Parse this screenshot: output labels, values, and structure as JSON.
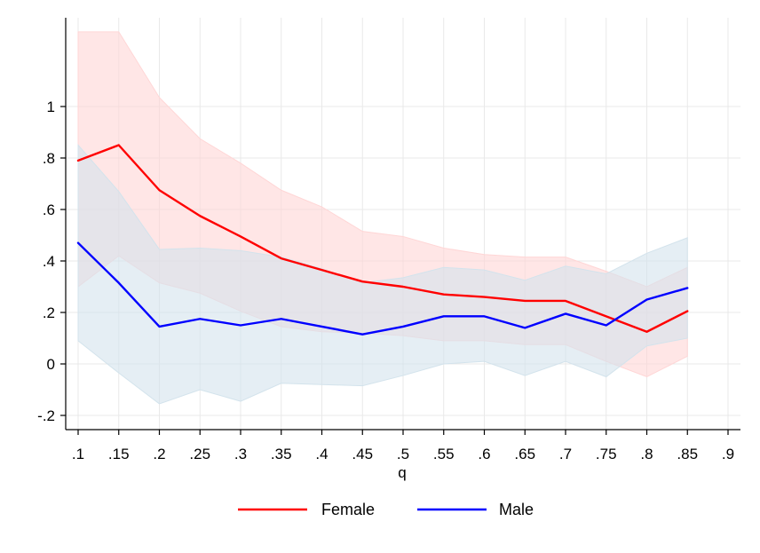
{
  "chart_data": {
    "type": "line",
    "title": "",
    "xlabel": "q",
    "ylabel": "",
    "xlim": [
      0.1,
      0.9
    ],
    "ylim": [
      -0.2,
      1.25
    ],
    "grid": true,
    "legend_position": "bottom",
    "x_ticks": [
      ".1",
      ".15",
      ".2",
      ".25",
      ".3",
      ".35",
      ".4",
      ".45",
      ".5",
      ".55",
      ".6",
      ".65",
      ".7",
      ".75",
      ".8",
      ".85",
      ".9"
    ],
    "y_ticks": [
      "-.2",
      "0",
      ".2",
      ".4",
      ".6",
      ".8",
      "1"
    ],
    "x": [
      0.1,
      0.15,
      0.2,
      0.25,
      0.3,
      0.35,
      0.4,
      0.45,
      0.5,
      0.55,
      0.6,
      0.65,
      0.7,
      0.75,
      0.8,
      0.85
    ],
    "series": [
      {
        "name": "Female",
        "color": "#ff0000",
        "band_color": "#ffd6d6",
        "values": [
          0.79,
          0.85,
          0.675,
          0.575,
          0.495,
          0.41,
          0.365,
          0.32,
          0.3,
          0.27,
          0.26,
          0.245,
          0.245,
          0.185,
          0.125,
          0.205
        ],
        "lower": [
          0.3,
          0.42,
          0.315,
          0.275,
          0.205,
          0.145,
          0.125,
          0.12,
          0.11,
          0.09,
          0.09,
          0.075,
          0.075,
          0.01,
          -0.05,
          0.03
        ],
        "upper": [
          1.29,
          1.29,
          1.035,
          0.875,
          0.78,
          0.675,
          0.61,
          0.515,
          0.495,
          0.45,
          0.425,
          0.415,
          0.415,
          0.36,
          0.3,
          0.375
        ]
      },
      {
        "name": "Male",
        "color": "#0000ff",
        "band_color": "#d3e3ec",
        "values": [
          0.47,
          0.315,
          0.145,
          0.175,
          0.15,
          0.175,
          0.145,
          0.115,
          0.145,
          0.185,
          0.185,
          0.14,
          0.195,
          0.15,
          0.25,
          0.295
        ],
        "lower": [
          0.09,
          -0.035,
          -0.155,
          -0.1,
          -0.145,
          -0.075,
          -0.08,
          -0.085,
          -0.045,
          0.0,
          0.01,
          -0.045,
          0.01,
          -0.05,
          0.07,
          0.1
        ],
        "upper": [
          0.85,
          0.67,
          0.445,
          0.45,
          0.44,
          0.415,
          0.37,
          0.315,
          0.335,
          0.375,
          0.365,
          0.325,
          0.38,
          0.35,
          0.43,
          0.49
        ]
      }
    ]
  }
}
